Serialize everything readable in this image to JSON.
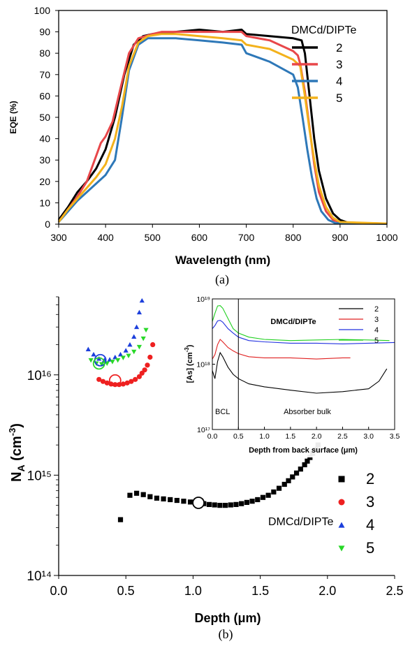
{
  "figure": {
    "caption_a": "(a)",
    "caption_b": "(b)"
  },
  "chart_data": [
    {
      "id": "a",
      "type": "line",
      "title": "",
      "xlabel": "Wavelength (nm)",
      "ylabel": "EQE (%)",
      "xlim": [
        300,
        1000
      ],
      "ylim": [
        0,
        100
      ],
      "xticks": [
        300,
        400,
        500,
        600,
        700,
        800,
        900,
        1000
      ],
      "yticks": [
        0,
        10,
        20,
        30,
        40,
        50,
        60,
        70,
        80,
        90,
        100
      ],
      "legend_title": "DMCd/DIPTe",
      "legend_position": "top-right",
      "grid": false,
      "series": [
        {
          "name": "2",
          "color": "#000000",
          "points": [
            [
              300,
              2
            ],
            [
              320,
              8
            ],
            [
              340,
              15
            ],
            [
              360,
              20
            ],
            [
              380,
              26
            ],
            [
              400,
              35
            ],
            [
              420,
              50
            ],
            [
              440,
              70
            ],
            [
              460,
              84
            ],
            [
              480,
              88
            ],
            [
              500,
              89
            ],
            [
              550,
              90
            ],
            [
              600,
              91
            ],
            [
              650,
              90
            ],
            [
              690,
              91
            ],
            [
              700,
              89
            ],
            [
              750,
              88
            ],
            [
              800,
              87
            ],
            [
              818,
              86
            ],
            [
              825,
              80
            ],
            [
              835,
              60
            ],
            [
              845,
              40
            ],
            [
              855,
              25
            ],
            [
              870,
              12
            ],
            [
              885,
              5
            ],
            [
              900,
              2
            ],
            [
              920,
              0.5
            ],
            [
              1000,
              0.3
            ]
          ]
        },
        {
          "name": "3",
          "color": "#e8474a",
          "points": [
            [
              300,
              1
            ],
            [
              320,
              7
            ],
            [
              340,
              13
            ],
            [
              360,
              20
            ],
            [
              380,
              32
            ],
            [
              390,
              38
            ],
            [
              400,
              41
            ],
            [
              415,
              48
            ],
            [
              430,
              62
            ],
            [
              450,
              80
            ],
            [
              470,
              87
            ],
            [
              500,
              89
            ],
            [
              520,
              90
            ],
            [
              550,
              90
            ],
            [
              600,
              90
            ],
            [
              650,
              90
            ],
            [
              690,
              90
            ],
            [
              700,
              88
            ],
            [
              750,
              86
            ],
            [
              800,
              81
            ],
            [
              810,
              79
            ],
            [
              815,
              75
            ],
            [
              825,
              62
            ],
            [
              835,
              45
            ],
            [
              845,
              28
            ],
            [
              855,
              15
            ],
            [
              870,
              6
            ],
            [
              885,
              2
            ],
            [
              900,
              0.8
            ],
            [
              1000,
              0.3
            ]
          ]
        },
        {
          "name": "4",
          "color": "#2e78b8",
          "points": [
            [
              300,
              1
            ],
            [
              320,
              6
            ],
            [
              340,
              11
            ],
            [
              360,
              15
            ],
            [
              380,
              19
            ],
            [
              400,
              23
            ],
            [
              420,
              30
            ],
            [
              435,
              50
            ],
            [
              450,
              72
            ],
            [
              470,
              84
            ],
            [
              490,
              87
            ],
            [
              520,
              87
            ],
            [
              550,
              87
            ],
            [
              600,
              86
            ],
            [
              650,
              85
            ],
            [
              690,
              84
            ],
            [
              700,
              80
            ],
            [
              750,
              76
            ],
            [
              800,
              70
            ],
            [
              810,
              64
            ],
            [
              820,
              50
            ],
            [
              830,
              35
            ],
            [
              840,
              22
            ],
            [
              850,
              12
            ],
            [
              860,
              6
            ],
            [
              875,
              2
            ],
            [
              890,
              0.5
            ],
            [
              1000,
              0.2
            ]
          ]
        },
        {
          "name": "5",
          "color": "#f3b21c",
          "points": [
            [
              300,
              1
            ],
            [
              320,
              7
            ],
            [
              340,
              12
            ],
            [
              360,
              17
            ],
            [
              380,
              22
            ],
            [
              400,
              28
            ],
            [
              420,
              40
            ],
            [
              435,
              55
            ],
            [
              450,
              74
            ],
            [
              470,
              85
            ],
            [
              490,
              88
            ],
            [
              520,
              89
            ],
            [
              550,
              89
            ],
            [
              600,
              88
            ],
            [
              650,
              87
            ],
            [
              690,
              86
            ],
            [
              700,
              84
            ],
            [
              750,
              82
            ],
            [
              800,
              77
            ],
            [
              815,
              74
            ],
            [
              825,
              60
            ],
            [
              835,
              44
            ],
            [
              845,
              30
            ],
            [
              855,
              18
            ],
            [
              870,
              8
            ],
            [
              885,
              3
            ],
            [
              900,
              1
            ],
            [
              1000,
              0.3
            ]
          ]
        }
      ]
    },
    {
      "id": "b",
      "type": "scatter",
      "title": "",
      "xlabel": "Depth (μm)",
      "ylabel": "N_A (cm⁻³)",
      "xscale": "linear",
      "yscale": "log",
      "xlim": [
        0,
        2.5
      ],
      "ylim": [
        100000000000000.0,
        6e+16
      ],
      "xticks": [
        0.0,
        0.5,
        1.0,
        1.5,
        2.0,
        2.5
      ],
      "xticklabels": [
        "0.0",
        "0.5",
        "1.0",
        "1.5",
        "2.0",
        "2.5"
      ],
      "yticks": [
        100000000000000.0,
        1000000000000000.0,
        1e+16
      ],
      "yticklabels": [
        "10¹⁴",
        "10¹⁵",
        "10¹⁶"
      ],
      "legend_title": "DMCd/DIPTe",
      "legend_position": "bottom-right",
      "grid": false,
      "series": [
        {
          "name": "2",
          "color": "#000000",
          "marker": "square",
          "x": [
            0.46,
            0.53,
            0.58,
            0.63,
            0.68,
            0.73,
            0.78,
            0.83,
            0.88,
            0.93,
            0.98,
            1.03,
            1.08,
            1.12,
            1.16,
            1.2,
            1.24,
            1.28,
            1.32,
            1.36,
            1.4,
            1.44,
            1.48,
            1.52,
            1.56,
            1.6,
            1.64,
            1.68,
            1.71,
            1.74,
            1.77,
            1.8,
            1.83,
            1.85,
            1.87,
            1.89,
            1.91,
            1.93
          ],
          "y": [
            360000000000000.0,
            630000000000000.0,
            660000000000000.0,
            640000000000000.0,
            610000000000000.0,
            590000000000000.0,
            580000000000000.0,
            570000000000000.0,
            560000000000000.0,
            550000000000000.0,
            540000000000000.0,
            530000000000000.0,
            520000000000000.0,
            510000000000000.0,
            505000000000000.0,
            500000000000000.0,
            500000000000000.0,
            505000000000000.0,
            510000000000000.0,
            520000000000000.0,
            535000000000000.0,
            550000000000000.0,
            570000000000000.0,
            600000000000000.0,
            630000000000000.0,
            680000000000000.0,
            740000000000000.0,
            810000000000000.0,
            880000000000000.0,
            960000000000000.0,
            1050000000000000.0,
            1150000000000000.0,
            1270000000000000.0,
            1380000000000000.0,
            1500000000000000.0,
            1650000000000000.0,
            1800000000000000.0,
            2000000000000000.0
          ]
        },
        {
          "name": "3",
          "color": "#ee2020",
          "marker": "circle",
          "x": [
            0.3,
            0.33,
            0.36,
            0.39,
            0.42,
            0.45,
            0.48,
            0.51,
            0.54,
            0.57,
            0.6,
            0.62,
            0.64,
            0.66,
            0.68,
            0.7
          ],
          "y": [
            9000000000000000.0,
            8600000000000000.0,
            8300000000000000.0,
            8100000000000000.0,
            8000000000000000.0,
            8000000000000000.0,
            8100000000000000.0,
            8300000000000000.0,
            8600000000000000.0,
            9000000000000000.0,
            9600000000000000.0,
            1.04e+16,
            1.12e+16,
            1.25e+16,
            1.5e+16,
            2e+16
          ]
        },
        {
          "name": "4",
          "color": "#1c3fdc",
          "marker": "triangle-up",
          "x": [
            0.22,
            0.26,
            0.3,
            0.34,
            0.38,
            0.42,
            0.46,
            0.5,
            0.53,
            0.56,
            0.58,
            0.6,
            0.62
          ],
          "y": [
            1.8e+16,
            1.6e+16,
            1.45e+16,
            1.4e+16,
            1.42e+16,
            1.5e+16,
            1.6e+16,
            1.75e+16,
            2e+16,
            2.4e+16,
            3e+16,
            4.2e+16,
            5.5e+16
          ]
        },
        {
          "name": "5",
          "color": "#28d828",
          "marker": "triangle-down",
          "x": [
            0.24,
            0.28,
            0.32,
            0.36,
            0.4,
            0.44,
            0.48,
            0.52,
            0.56,
            0.6,
            0.63,
            0.65
          ],
          "y": [
            1.4e+16,
            1.3e+16,
            1.28e+16,
            1.3e+16,
            1.35e+16,
            1.4e+16,
            1.48e+16,
            1.55e+16,
            1.7e+16,
            1.9e+16,
            2.3e+16,
            2.8e+16
          ]
        }
      ],
      "open_markers": [
        {
          "series": "2",
          "x": 1.04,
          "y": 530000000000000.0
        },
        {
          "series": "3",
          "x": 0.42,
          "y": 8800000000000000.0
        },
        {
          "series": "4",
          "x": 0.31,
          "y": 1.4e+16
        },
        {
          "series": "5",
          "x": 0.3,
          "y": 1.3e+16
        }
      ],
      "inset": {
        "type": "line",
        "xlabel": "Depth from back surface (μm)",
        "ylabel": "[As] (cm⁻³)",
        "xlim": [
          0.0,
          3.5
        ],
        "xticks": [
          0.0,
          0.5,
          1.0,
          1.5,
          2.0,
          2.5,
          3.0,
          3.5
        ],
        "xticklabels": [
          "0.0",
          "0.5",
          "1.0",
          "1.5",
          "2.0",
          "2.5",
          "3.0",
          "3.5"
        ],
        "yscale": "log",
        "ylim": [
          1e+17,
          1e+19
        ],
        "yticklabels": [
          "10¹⁷",
          "10¹⁸",
          "10¹⁹"
        ],
        "legend_title": "DMCd/DIPTe",
        "regions": [
          "BCL",
          "Absorber bulk"
        ],
        "region_boundary_x": 0.5,
        "series": [
          {
            "name": "2",
            "color": "#000000",
            "x": [
              0,
              0.05,
              0.1,
              0.15,
              0.2,
              0.3,
              0.4,
              0.5,
              0.7,
              1.0,
              1.5,
              2.0,
              2.5,
              3.0,
              3.2,
              3.35
            ],
            "y": [
              8e+17,
              6e+17,
              1.1e+18,
              1.5e+18,
              1.3e+18,
              9e+17,
              7e+17,
              6e+17,
              5e+17,
              4.5e+17,
              4e+17,
              3.6e+17,
              3.8e+17,
              4.2e+17,
              5.5e+17,
              8.5e+17
            ]
          },
          {
            "name": "3",
            "color": "#e02020",
            "x": [
              0,
              0.05,
              0.1,
              0.15,
              0.2,
              0.3,
              0.4,
              0.5,
              0.7,
              1.0,
              1.5,
              2.0,
              2.5,
              2.65
            ],
            "y": [
              1.2e+18,
              1.4e+18,
              2e+18,
              2.4e+18,
              2.2e+18,
              1.8e+18,
              1.6e+18,
              1.45e+18,
              1.3e+18,
              1.25e+18,
              1.25e+18,
              1.2e+18,
              1.25e+18,
              1.25e+18
            ]
          },
          {
            "name": "4",
            "color": "#2030e0",
            "x": [
              0,
              0.05,
              0.1,
              0.15,
              0.2,
              0.3,
              0.4,
              0.5,
              0.7,
              1.0,
              1.5,
              2.0,
              2.5,
              3.0,
              3.5
            ],
            "y": [
              3.5e+18,
              3.9e+18,
              4.6e+18,
              4.7e+18,
              4.4e+18,
              3.5e+18,
              3e+18,
              2.6e+18,
              2.3e+18,
              2.2e+18,
              2.1e+18,
              2.1e+18,
              2.05e+18,
              2.1e+18,
              2.15e+18
            ]
          },
          {
            "name": "5",
            "color": "#20d020",
            "x": [
              0,
              0.05,
              0.1,
              0.15,
              0.2,
              0.3,
              0.4,
              0.5,
              0.7,
              1.0,
              1.5,
              2.0,
              2.5,
              3.0,
              3.4
            ],
            "y": [
              4.5e+18,
              6e+18,
              7.8e+18,
              7.9e+18,
              7.2e+18,
              5e+18,
              3.5e+18,
              3e+18,
              2.6e+18,
              2.4e+18,
              2.3e+18,
              2.35e+18,
              2.4e+18,
              2.35e+18,
              2.3e+18
            ]
          }
        ]
      }
    }
  ]
}
